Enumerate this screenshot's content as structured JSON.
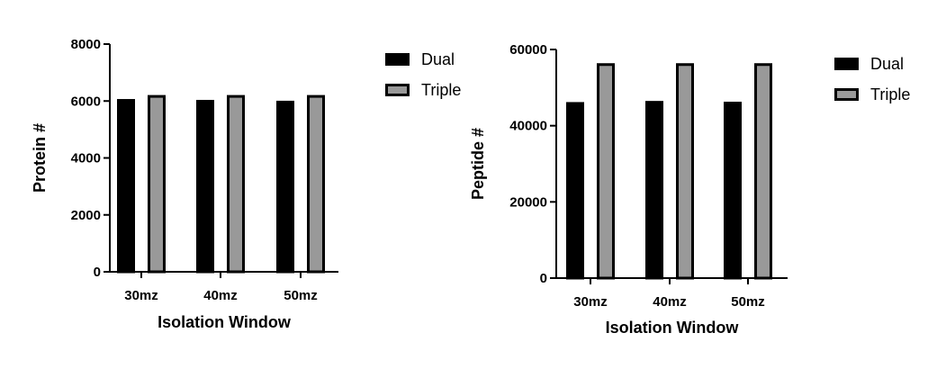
{
  "chart_data": [
    {
      "type": "bar",
      "categories": [
        "30mz",
        "40mz",
        "50mz"
      ],
      "series": [
        {
          "name": "Dual",
          "values": [
            6070,
            6040,
            6010
          ],
          "color": "#000000"
        },
        {
          "name": "Triple",
          "values": [
            6210,
            6210,
            6210
          ],
          "color": "#999999"
        }
      ],
      "title": "",
      "xlabel": "Isolation Window",
      "ylabel": "Protein #",
      "ylim": [
        0,
        8000
      ],
      "yticks": [
        0,
        2000,
        4000,
        6000,
        8000
      ],
      "grid": false,
      "legend_position": "top-right"
    },
    {
      "type": "bar",
      "categories": [
        "30mz",
        "40mz",
        "50mz"
      ],
      "series": [
        {
          "name": "Dual",
          "values": [
            46200,
            46500,
            46300
          ],
          "color": "#000000"
        },
        {
          "name": "Triple",
          "values": [
            56400,
            56400,
            56400
          ],
          "color": "#999999"
        }
      ],
      "title": "",
      "xlabel": "Isolation Window",
      "ylabel": "Peptide #",
      "ylim": [
        0,
        60000
      ],
      "yticks": [
        0,
        20000,
        40000,
        60000
      ],
      "grid": false,
      "legend_position": "top-right"
    }
  ]
}
